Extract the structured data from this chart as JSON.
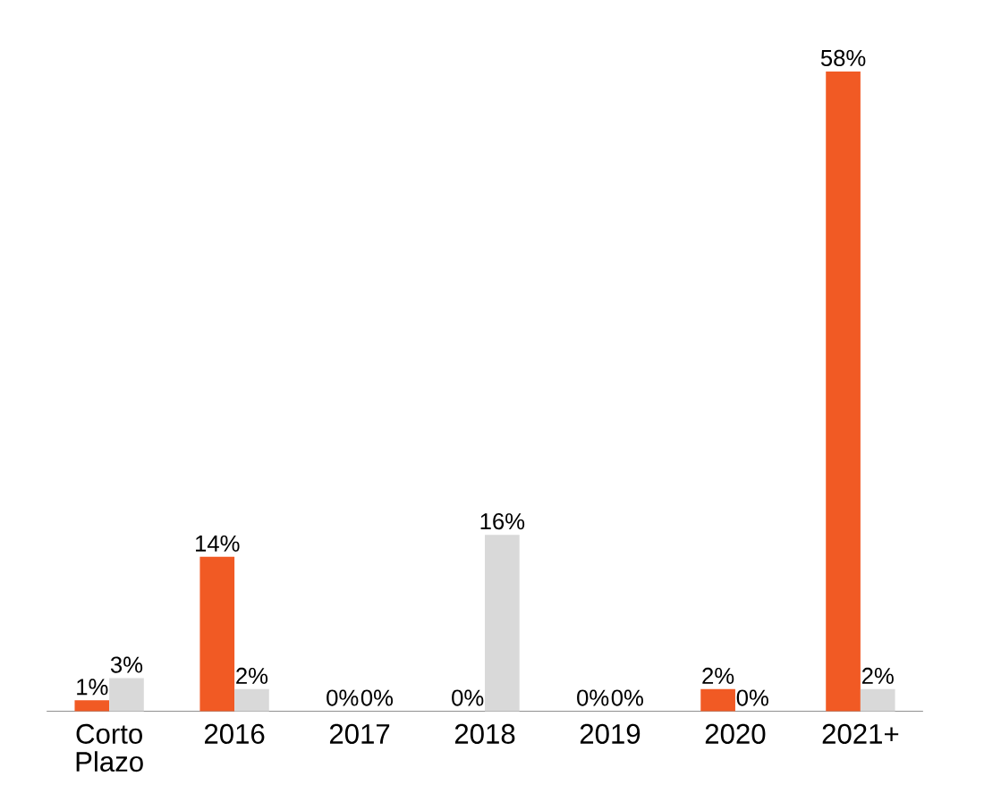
{
  "chart_data": {
    "type": "bar",
    "categories": [
      "Corto Plazo",
      "2016",
      "2017",
      "2018",
      "2019",
      "2020",
      "2021+"
    ],
    "series": [
      {
        "color": "#f15a24",
        "values": [
          1,
          14,
          0,
          0,
          0,
          2,
          58
        ],
        "value_labels": [
          "1%",
          "14%",
          "0%",
          "0%",
          "0%",
          "2%",
          "58%"
        ]
      },
      {
        "color": "#d9d9d9",
        "values": [
          3,
          2,
          0,
          16,
          0,
          0,
          2
        ],
        "value_labels": [
          "3%",
          "2%",
          "0%",
          "16%",
          "0%",
          "0%",
          "2%"
        ]
      }
    ]
  }
}
